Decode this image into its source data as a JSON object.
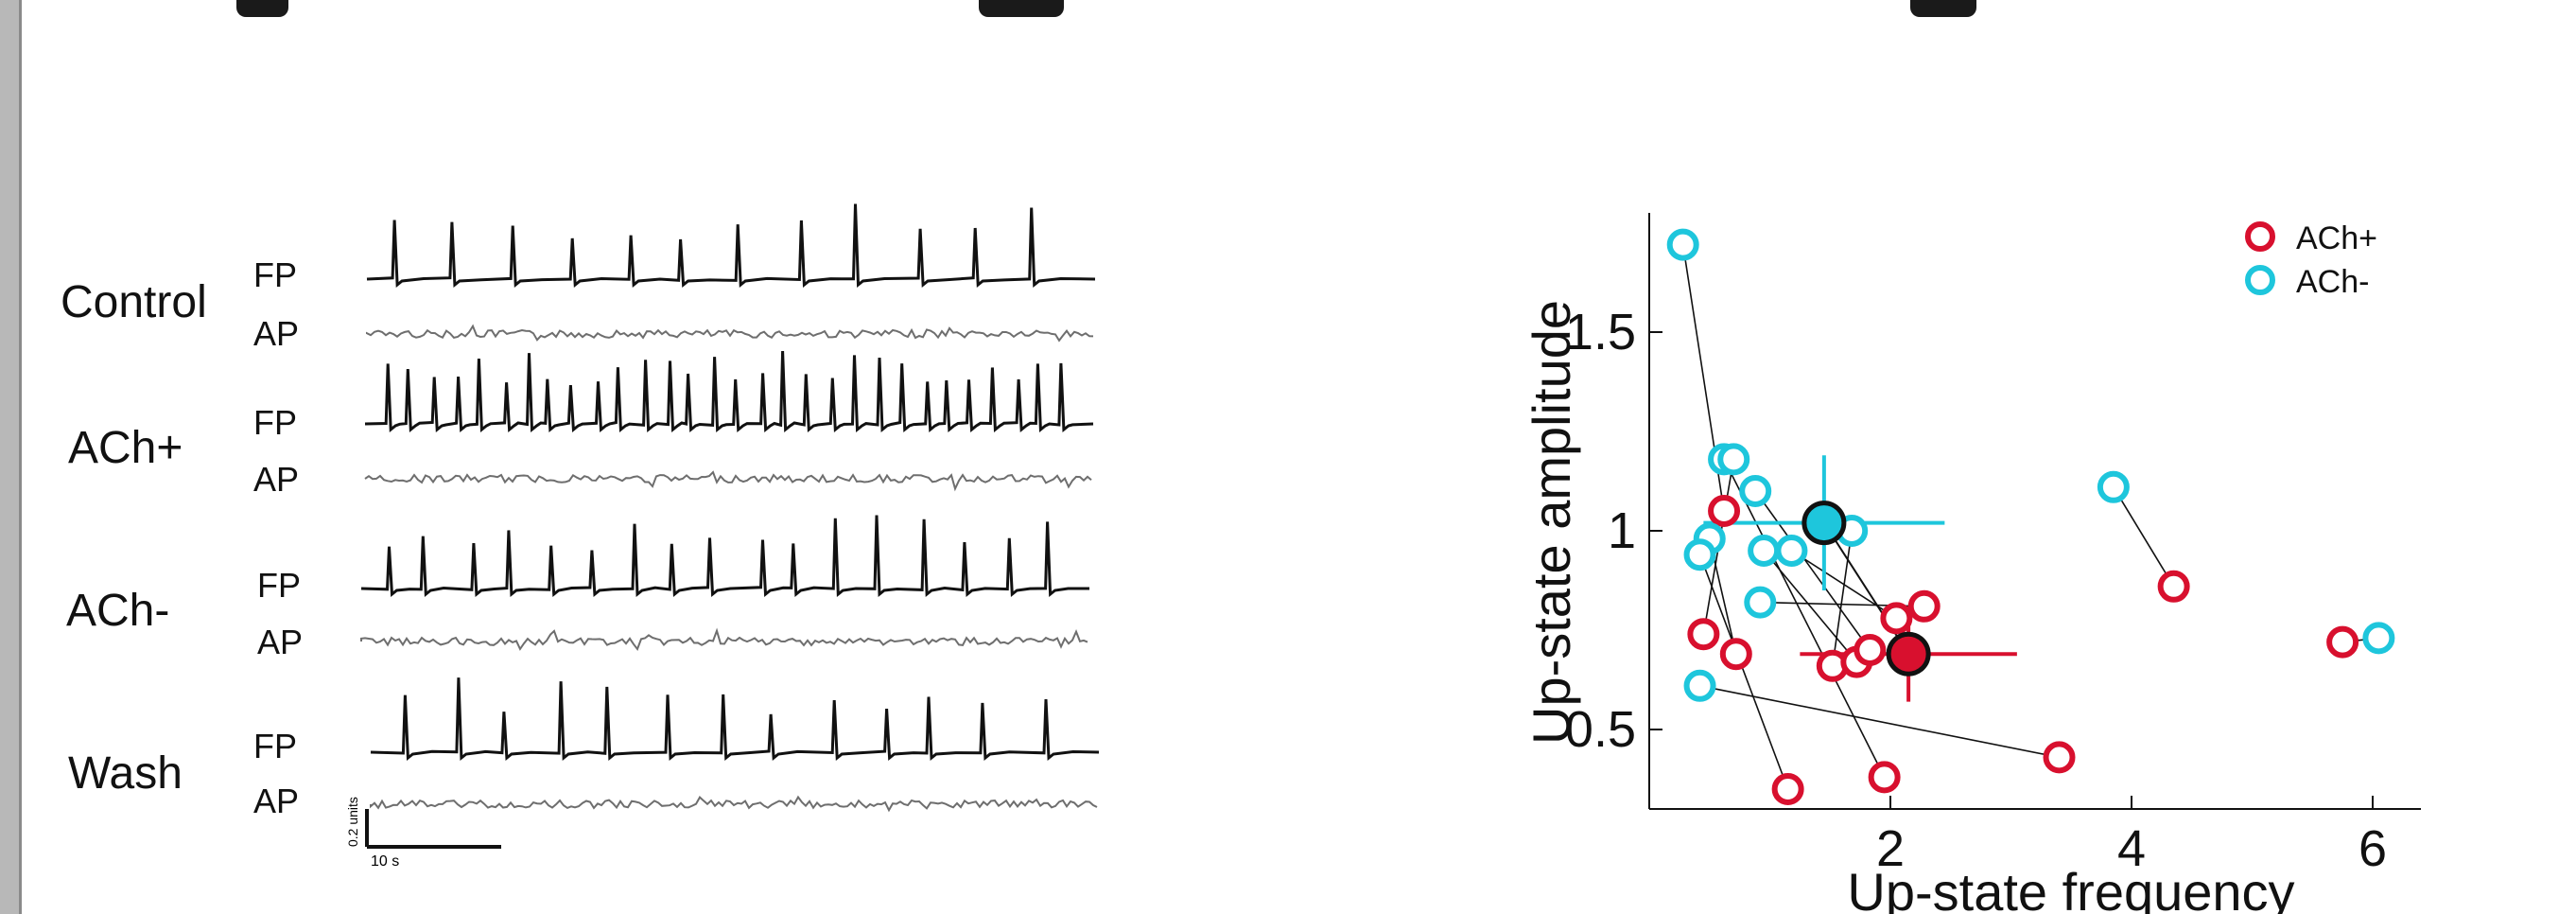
{
  "traces": {
    "conditions": [
      {
        "label": "Control",
        "fp_label": "FP",
        "ap_label": "AP",
        "fp_spikes": 12
      },
      {
        "label": "ACh+",
        "fp_label": "FP",
        "ap_label": "AP",
        "fp_spikes": 30
      },
      {
        "label": "ACh-",
        "fp_label": "FP",
        "ap_label": "AP",
        "fp_spikes": 17
      },
      {
        "label": "Wash",
        "fp_label": "FP",
        "ap_label": "AP",
        "fp_spikes": 13
      }
    ],
    "scalebar": {
      "vertical_label": "0.2 units",
      "horizontal_label": "10 s"
    },
    "colors": {
      "fp": "#111111",
      "ap": "#6e6e6e"
    }
  },
  "chart_data": {
    "type": "scatter",
    "xlabel": "Up-state frequency",
    "ylabel": "Up-state amplitude",
    "xlim": [
      0,
      6.4
    ],
    "ylim": [
      0.3,
      1.8
    ],
    "xticks": [
      2,
      4,
      6
    ],
    "yticks": [
      0.5,
      1,
      1.5
    ],
    "xtick_labels": [
      "2",
      "4",
      "6"
    ],
    "ytick_labels": [
      "0.5",
      "1",
      "1.5"
    ],
    "legend": {
      "position": "top-right",
      "entries": [
        {
          "label": "ACh+",
          "color": "#d8102e"
        },
        {
          "label": "ACh-",
          "color": "#1ec6dc"
        }
      ]
    },
    "series": [
      {
        "name": "ACh+",
        "color": "#d8102e",
        "points": [
          [
            0.62,
            1.05
          ],
          [
            0.45,
            0.74
          ],
          [
            0.72,
            0.69
          ],
          [
            1.15,
            0.35
          ],
          [
            1.95,
            0.38
          ],
          [
            1.52,
            0.66
          ],
          [
            1.72,
            0.67
          ],
          [
            1.83,
            0.7
          ],
          [
            2.05,
            0.78
          ],
          [
            2.28,
            0.81
          ],
          [
            3.4,
            0.43
          ],
          [
            4.35,
            0.86
          ],
          [
            5.75,
            0.72
          ]
        ],
        "mean": {
          "x": 2.15,
          "y": 0.69,
          "x_err": 0.9,
          "y_err": 0.12
        }
      },
      {
        "name": "ACh-",
        "color": "#1ec6dc",
        "points": [
          [
            0.28,
            1.72
          ],
          [
            0.62,
            1.18
          ],
          [
            0.7,
            1.18
          ],
          [
            0.88,
            1.1
          ],
          [
            0.5,
            0.98
          ],
          [
            0.42,
            0.94
          ],
          [
            0.95,
            0.95
          ],
          [
            1.18,
            0.95
          ],
          [
            1.68,
            1.0
          ],
          [
            0.92,
            0.82
          ],
          [
            0.42,
            0.61
          ],
          [
            3.85,
            1.11
          ],
          [
            6.05,
            0.73
          ]
        ],
        "mean": {
          "x": 1.45,
          "y": 1.02,
          "x_err": 1.0,
          "y_err": 0.17
        }
      }
    ],
    "pairs": [
      [
        0,
        0
      ],
      [
        1,
        2
      ],
      [
        2,
        4
      ],
      [
        3,
        5
      ],
      [
        4,
        1
      ],
      [
        5,
        8
      ],
      [
        6,
        6
      ],
      [
        7,
        3
      ],
      [
        8,
        7
      ],
      [
        9,
        9
      ],
      [
        10,
        10
      ],
      [
        11,
        11
      ],
      [
        12,
        12
      ]
    ]
  }
}
